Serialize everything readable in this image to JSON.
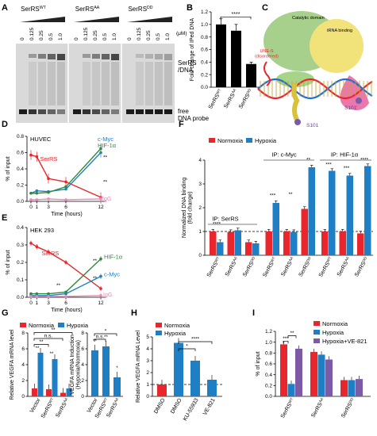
{
  "panel_labels": [
    "A",
    "B",
    "C",
    "D",
    "E",
    "F",
    "G",
    "H",
    "I"
  ],
  "colors": {
    "red": "#e8262b",
    "blue": "#1f7fc4",
    "green": "#2e8b3a",
    "purple": "#7b5aa6",
    "pink": "#e889b7",
    "navy": "#1f3a8a"
  },
  "panelA": {
    "groups": [
      "SerRS^WT",
      "SerRS^AA",
      "SerRS^DD"
    ],
    "concentrations": [
      "0",
      "0.125",
      "0.25",
      "0.5",
      "1.0"
    ],
    "unit": "(μM)",
    "band_top": "SerRS\n/DNA",
    "band_bottom": "free\nDNA probe"
  },
  "panelC": {
    "labels": [
      "Catalytic domain",
      "tRNA binding",
      "UNE-S\n(disordered)",
      "S101",
      "S101'"
    ]
  },
  "chart_data": [
    {
      "id": "B",
      "type": "bar",
      "categories": [
        "SerRS^WT",
        "SerRS^AA",
        "SerRS^DD"
      ],
      "values": [
        1.0,
        0.9,
        0.37
      ],
      "errors": [
        0.09,
        0.1,
        0.03
      ],
      "ylabel": "Fold change of IPed DNA",
      "ylim": [
        0,
        1.2
      ],
      "yticks": [
        0.0,
        0.2,
        0.4,
        0.6,
        0.8,
        1.0,
        1.2
      ],
      "annotations": [
        {
          "text": "****",
          "from": 0,
          "to": 2
        }
      ]
    },
    {
      "id": "D",
      "type": "line",
      "title": "HUVEC",
      "x": [
        0,
        1,
        3,
        6,
        12
      ],
      "xlabel": "Time (hours)",
      "ylabel": "% of input",
      "ylim": [
        0,
        0.8
      ],
      "yticks": [
        0,
        0.2,
        0.4,
        0.6,
        0.8
      ],
      "series": [
        {
          "name": "SerRS",
          "color": "#e8262b",
          "values": [
            0.57,
            0.55,
            0.28,
            0.24,
            0.05
          ]
        },
        {
          "name": "c-Myc",
          "color": "#1f7fc4",
          "values": [
            0.1,
            0.13,
            0.12,
            0.15,
            0.6
          ]
        },
        {
          "name": "HIF-1α",
          "color": "#2e8b3a",
          "values": [
            0.1,
            0.1,
            0.11,
            0.18,
            0.65
          ]
        },
        {
          "name": "IgG",
          "color": "#e889b7",
          "values": [
            0.02,
            0.02,
            0.03,
            0.02,
            0.03
          ]
        }
      ],
      "annotations": [
        "**",
        "**"
      ]
    },
    {
      "id": "E",
      "type": "line",
      "title": "HEK 293",
      "x": [
        0,
        1,
        3,
        6,
        12
      ],
      "xlabel": "Time (hours)",
      "ylabel": "% of input",
      "ylim": [
        0,
        0.4
      ],
      "yticks": [
        0,
        0.1,
        0.2,
        0.3,
        0.4
      ],
      "series": [
        {
          "name": "SerRS",
          "color": "#e8262b",
          "values": [
            0.31,
            0.29,
            0.26,
            0.2,
            0.05
          ]
        },
        {
          "name": "HIF-1α",
          "color": "#2e8b3a",
          "values": [
            0.02,
            0.02,
            0.02,
            0.03,
            0.22
          ]
        },
        {
          "name": "c-Myc",
          "color": "#1f7fc4",
          "values": [
            0.01,
            0.01,
            0.01,
            0.02,
            0.12
          ]
        },
        {
          "name": "IgG",
          "color": "#e889b7",
          "values": [
            0.005,
            0.005,
            0.005,
            0.005,
            0.01
          ]
        }
      ],
      "annotations": [
        "**",
        "**",
        "**"
      ]
    },
    {
      "id": "F",
      "type": "bar",
      "legend": [
        "Normoxia",
        "Hypoxia"
      ],
      "group_labels": [
        "IP: SerRS",
        "IP: c-Myc",
        "IP: HIF-1α"
      ],
      "categories": [
        "SerRS^WT",
        "SerRS^AA",
        "SerRS^DD",
        "SerRS^WT",
        "SerRS^AA",
        "SerRS^DD",
        "SerRS^WT",
        "SerRS^AA",
        "SerRS^DD"
      ],
      "series": [
        {
          "name": "Normoxia",
          "color": "#e8262b",
          "values": [
            1.0,
            0.98,
            0.55,
            1.0,
            1.0,
            1.95,
            1.0,
            1.0,
            0.92
          ]
        },
        {
          "name": "Hypoxia",
          "color": "#1f7fc4",
          "values": [
            0.55,
            1.05,
            0.5,
            2.2,
            0.98,
            3.7,
            3.55,
            3.35,
            3.75
          ]
        }
      ],
      "ylabel": "Normalized DNA binding\n(fold change)",
      "ylim": [
        0,
        4
      ],
      "yticks": [
        0,
        1,
        2,
        3,
        4
      ]
    },
    {
      "id": "G1",
      "type": "bar",
      "legend": [
        "Normoxia",
        "Hypoxia"
      ],
      "categories": [
        "Vector",
        "SerRS^WT",
        "SerRS^AA"
      ],
      "series": [
        {
          "name": "Normoxia",
          "color": "#e8262b",
          "values": [
            1.0,
            0.9,
            0.45
          ]
        },
        {
          "name": "Hypoxia",
          "color": "#1f7fc4",
          "values": [
            5.5,
            4.7,
            1.0
          ]
        }
      ],
      "ylabel": "Relative VEGFA mRNA level",
      "ylim": [
        0,
        8
      ],
      "yticks": [
        0,
        2,
        4,
        6,
        8
      ],
      "annotations": [
        "**",
        "**",
        "**",
        "n.s.",
        "**"
      ]
    },
    {
      "id": "G2",
      "type": "bar",
      "categories": [
        "Vector",
        "SerRS^WT",
        "SerRS^AA"
      ],
      "values": [
        5.8,
        6.3,
        2.4
      ],
      "color": "#1f7fc4",
      "ylabel": "VEGFA mRNA Induction\n(Hypoxia/Normoxia)",
      "ylim": [
        0,
        8
      ],
      "yticks": [
        0,
        2,
        4,
        6,
        8
      ],
      "annotations": [
        "n.s.",
        "*"
      ]
    },
    {
      "id": "H",
      "type": "bar",
      "legend": [
        "Normoxia",
        "Hypoxia"
      ],
      "categories": [
        "DMSO",
        "DMSO",
        "KU-55933",
        "VE-821"
      ],
      "values": [
        1.0,
        4.5,
        3.0,
        1.4
      ],
      "colors": [
        "#e8262b",
        "#1f7fc4",
        "#1f7fc4",
        "#1f7fc4"
      ],
      "ylabel": "Relative VEGFA mRNA Level",
      "ylim": [
        0,
        5
      ],
      "yticks": [
        0,
        1,
        2,
        3,
        4,
        5
      ],
      "annotations": [
        "*",
        "****"
      ]
    },
    {
      "id": "I",
      "type": "bar",
      "legend": [
        "Normoxia",
        "Hypoxia",
        "Hypoxia+VE-821"
      ],
      "categories": [
        "SerRS^WT",
        "SerRS^AA",
        "SerRS^DD"
      ],
      "series": [
        {
          "name": "Normoxia",
          "color": "#e8262b",
          "values": [
            0.96,
            0.82,
            0.3
          ]
        },
        {
          "name": "Hypoxia",
          "color": "#1f7fc4",
          "values": [
            0.23,
            0.77,
            0.3
          ]
        },
        {
          "name": "Hypoxia+VE-821",
          "color": "#7b5aa6",
          "values": [
            0.88,
            0.68,
            0.32
          ]
        }
      ],
      "ylabel": "% of input",
      "ylim": [
        0,
        1.2
      ],
      "yticks": [
        0,
        0.2,
        0.4,
        0.6,
        0.8,
        1.0,
        1.2
      ],
      "annotations": [
        "***",
        "**"
      ]
    }
  ]
}
